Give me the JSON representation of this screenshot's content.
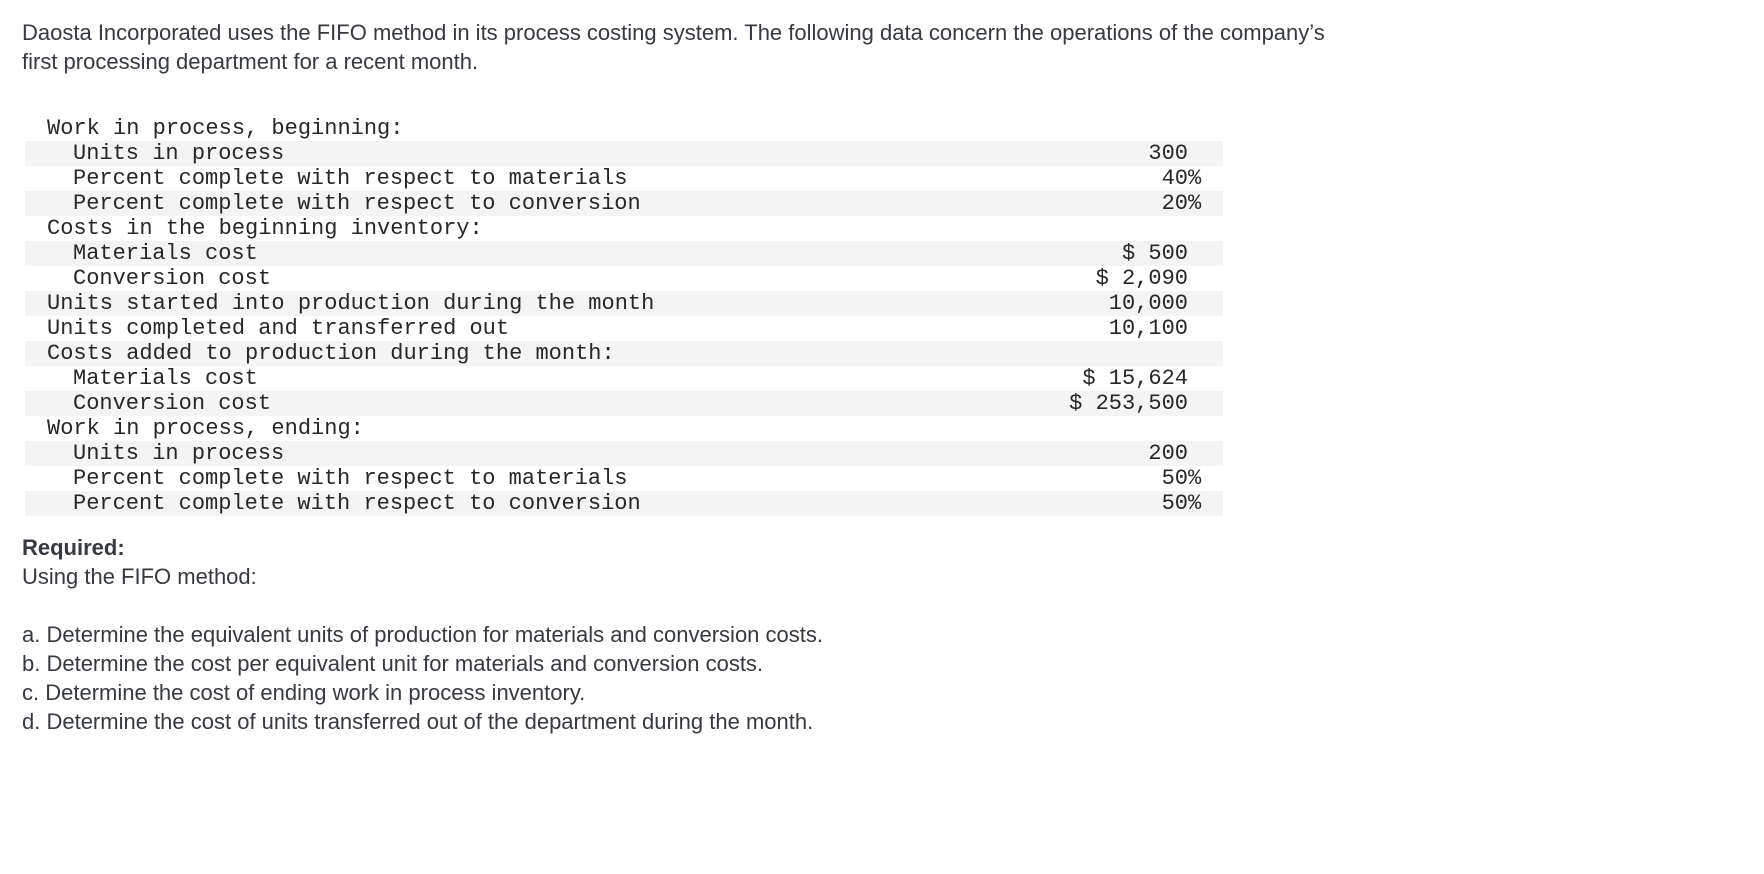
{
  "intro": {
    "line1": "Daosta Incorporated uses the FIFO method in its process costing system. The following data concern the operations of the company’s",
    "line2": "first processing department for a recent month."
  },
  "table": {
    "stripe_color": "#f4f4f4",
    "rows": [
      {
        "label": "Work in process, beginning:",
        "indent": 0,
        "value": "",
        "suffix": ""
      },
      {
        "label": "Units in process",
        "indent": 1,
        "value": "300",
        "suffix": ""
      },
      {
        "label": "Percent complete with respect to materials",
        "indent": 1,
        "value": "40",
        "suffix": "%"
      },
      {
        "label": "Percent complete with respect to conversion",
        "indent": 1,
        "value": "20",
        "suffix": "%"
      },
      {
        "label": "Costs in the beginning inventory:",
        "indent": 0,
        "value": "",
        "suffix": ""
      },
      {
        "label": "Materials cost",
        "indent": 1,
        "value": "$ 500",
        "suffix": ""
      },
      {
        "label": "Conversion cost",
        "indent": 1,
        "value": "$ 2,090",
        "suffix": ""
      },
      {
        "label": "Units started into production during the month",
        "indent": 0,
        "value": "10,000",
        "suffix": ""
      },
      {
        "label": "Units completed and transferred out",
        "indent": 0,
        "value": "10,100",
        "suffix": ""
      },
      {
        "label": "Costs added to production during the month:",
        "indent": 0,
        "value": "",
        "suffix": ""
      },
      {
        "label": "Materials cost",
        "indent": 1,
        "value": "$ 15,624",
        "suffix": ""
      },
      {
        "label": "Conversion cost",
        "indent": 1,
        "value": "$ 253,500",
        "suffix": ""
      },
      {
        "label": "Work in process, ending:",
        "indent": 0,
        "value": "",
        "suffix": ""
      },
      {
        "label": "Units in process",
        "indent": 1,
        "value": "200",
        "suffix": ""
      },
      {
        "label": "Percent complete with respect to materials",
        "indent": 1,
        "value": "50",
        "suffix": "%"
      },
      {
        "label": "Percent complete with respect to conversion",
        "indent": 1,
        "value": "50",
        "suffix": "%"
      }
    ]
  },
  "required": {
    "heading": "Required:",
    "subheading": "Using the FIFO method:",
    "items": [
      "a. Determine the equivalent units of production for materials and conversion costs.",
      "b. Determine the cost per equivalent unit for materials and conversion costs.",
      "c. Determine the cost of ending work in process inventory.",
      "d. Determine the cost of units transferred out of the department during the month."
    ]
  }
}
